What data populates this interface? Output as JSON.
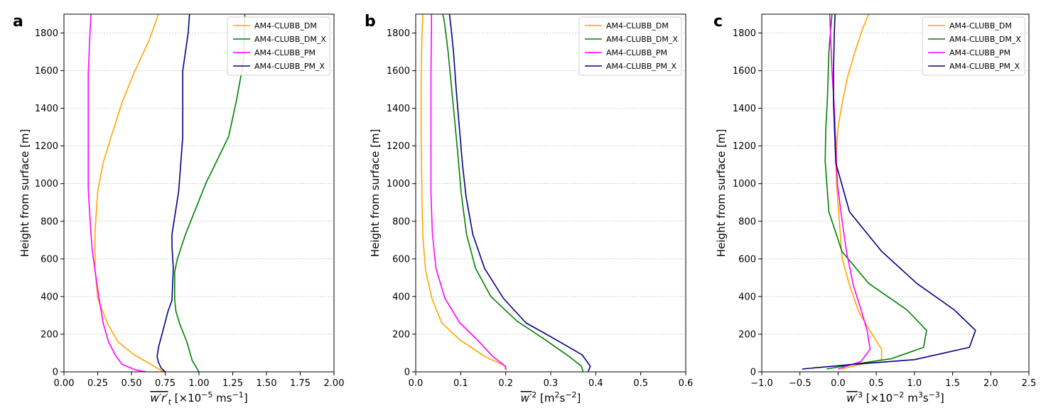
{
  "chart_data": [
    {
      "type": "line",
      "panel": "a",
      "xlabel": "w′r′t [×10⁻⁵ ms⁻¹]",
      "xlabel_parts": {
        "bar": "w′r′",
        "sub": "t",
        "rest": " [×10",
        "exp": "−5",
        "unit": " ms",
        "unit_exp": "−1",
        "close": "]"
      },
      "ylabel": "Height from surface [m]",
      "xlim": [
        0.0,
        2.0
      ],
      "ylim": [
        0,
        1900
      ],
      "xticks": [
        0.0,
        0.25,
        0.5,
        0.75,
        1.0,
        1.25,
        1.5,
        1.75,
        2.0
      ],
      "xtick_labels": [
        "0.00",
        "0.25",
        "0.50",
        "0.75",
        "1.00",
        "1.25",
        "1.50",
        "1.75",
        "2.00"
      ],
      "yticks": [
        0,
        200,
        400,
        600,
        800,
        1000,
        1200,
        1400,
        1600,
        1800
      ],
      "ytick_labels": [
        "0",
        "200",
        "400",
        "600",
        "800",
        "1000",
        "1200",
        "1400",
        "1600",
        "1800"
      ],
      "legend_position": "top-right",
      "series": [
        {
          "name": "AM4-CLUBB_DM",
          "color": "#ffa500",
          "x": [
            0.74,
            0.52,
            0.4,
            0.32,
            0.25,
            0.23,
            0.23,
            0.25,
            0.29,
            0.35,
            0.43,
            0.52,
            0.63,
            0.7
          ],
          "y": [
            0,
            90,
            160,
            260,
            390,
            550,
            740,
            960,
            1110,
            1250,
            1430,
            1590,
            1760,
            1900
          ]
        },
        {
          "name": "AM4-CLUBB_DM_X",
          "color": "#008000",
          "x": [
            1.0,
            0.95,
            0.91,
            0.86,
            0.83,
            0.82,
            0.82,
            0.84,
            0.9,
            1.05,
            1.22,
            1.28,
            1.33,
            1.34
          ],
          "y": [
            0,
            60,
            160,
            250,
            320,
            380,
            530,
            600,
            730,
            1000,
            1250,
            1450,
            1650,
            1900
          ]
        },
        {
          "name": "AM4-CLUBB_PM",
          "color": "#ff00ff",
          "x": [
            0.61,
            0.53,
            0.43,
            0.38,
            0.33,
            0.29,
            0.26,
            0.23,
            0.21,
            0.2,
            0.19,
            0.18,
            0.18,
            0.18,
            0.19,
            0.2
          ],
          "y": [
            0,
            10,
            40,
            90,
            160,
            260,
            390,
            540,
            640,
            740,
            850,
            970,
            1200,
            1580,
            1760,
            1900
          ]
        },
        {
          "name": "AM4-CLUBB_PM_X",
          "color": "#000080",
          "x": [
            0.75,
            0.72,
            0.7,
            0.69,
            0.7,
            0.73,
            0.77,
            0.8,
            0.81,
            0.8,
            0.8,
            0.85,
            0.88,
            0.88,
            0.92,
            0.93
          ],
          "y": [
            0,
            20,
            50,
            80,
            130,
            210,
            320,
            380,
            550,
            670,
            730,
            960,
            1250,
            1600,
            1800,
            1900
          ]
        }
      ]
    },
    {
      "type": "line",
      "panel": "b",
      "xlabel": "w′² [m²s⁻²]",
      "xlabel_parts": {
        "bar": "w′",
        "bar_sup": "2",
        "rest": " [m",
        "exp": "2",
        "unit": "s",
        "unit_exp": "−2",
        "close": "]"
      },
      "ylabel": "Height from surface [m]",
      "xlim": [
        0.0,
        0.6
      ],
      "ylim": [
        0,
        1900
      ],
      "xticks": [
        0.0,
        0.1,
        0.2,
        0.3,
        0.4,
        0.5,
        0.6
      ],
      "xtick_labels": [
        "0.0",
        "0.1",
        "0.2",
        "0.3",
        "0.4",
        "0.5",
        "0.6"
      ],
      "yticks": [
        0,
        200,
        400,
        600,
        800,
        1000,
        1200,
        1400,
        1600,
        1800
      ],
      "ytick_labels": [
        "0",
        "200",
        "400",
        "600",
        "800",
        "1000",
        "1200",
        "1400",
        "1600",
        "1800"
      ],
      "legend_position": "top-right",
      "series": [
        {
          "name": "AM4-CLUBB_DM",
          "color": "#ffa500",
          "x": [
            0.201,
            0.2,
            0.155,
            0.098,
            0.058,
            0.036,
            0.022,
            0.016,
            0.014,
            0.013,
            0.012,
            0.012,
            0.013,
            0.014,
            0.016
          ],
          "y": [
            10,
            30,
            80,
            170,
            260,
            390,
            540,
            720,
            900,
            1100,
            1300,
            1500,
            1700,
            1800,
            1900
          ]
        },
        {
          "name": "AM4-CLUBB_DM_X",
          "color": "#008000",
          "x": [
            0.372,
            0.368,
            0.342,
            0.282,
            0.225,
            0.167,
            0.133,
            0.113,
            0.101,
            0.094,
            0.086,
            0.078,
            0.072,
            0.067,
            0.063,
            0.06
          ],
          "y": [
            0,
            30,
            80,
            180,
            270,
            400,
            550,
            730,
            950,
            1150,
            1350,
            1550,
            1700,
            1800,
            1870,
            1900
          ]
        },
        {
          "name": "AM4-CLUBB_PM",
          "color": "#ff00ff",
          "x": [
            0.2,
            0.199,
            0.172,
            0.137,
            0.098,
            0.065,
            0.045,
            0.037,
            0.034,
            0.034,
            0.034,
            0.034,
            0.035,
            0.035
          ],
          "y": [
            10,
            30,
            80,
            170,
            260,
            390,
            550,
            740,
            950,
            1150,
            1400,
            1600,
            1800,
            1900
          ]
        },
        {
          "name": "AM4-CLUBB_PM_X",
          "color": "#000080",
          "x": [
            0.383,
            0.388,
            0.37,
            0.305,
            0.245,
            0.195,
            0.153,
            0.127,
            0.112,
            0.104,
            0.097,
            0.09,
            0.084,
            0.079,
            0.075
          ],
          "y": [
            0,
            30,
            90,
            180,
            260,
            390,
            550,
            730,
            930,
            1100,
            1300,
            1500,
            1700,
            1820,
            1900
          ]
        }
      ]
    },
    {
      "type": "line",
      "panel": "c",
      "xlabel": "w′³ [×10⁻² m³s⁻³]",
      "xlabel_parts": {
        "bar": "w′",
        "bar_sup": "3",
        "rest": " [×10",
        "exp": "−2",
        "unit": " m",
        "unit_exp": "3",
        "unit2": "s",
        "unit2_exp": "−3",
        "close": "]"
      },
      "ylabel": "Height from surface [m]",
      "xlim": [
        -1.0,
        2.5
      ],
      "ylim": [
        0,
        1900
      ],
      "xticks": [
        -1.0,
        -0.5,
        0.0,
        0.5,
        1.0,
        1.5,
        2.0,
        2.5
      ],
      "xtick_labels": [
        "−1.0",
        "−0.5",
        "0.0",
        "0.5",
        "1.0",
        "1.5",
        "2.0",
        "2.5"
      ],
      "yticks": [
        0,
        200,
        400,
        600,
        800,
        1000,
        1200,
        1400,
        1600,
        1800
      ],
      "ytick_labels": [
        "0",
        "200",
        "400",
        "600",
        "800",
        "1000",
        "1200",
        "1400",
        "1600",
        "1800"
      ],
      "legend_position": "top-right",
      "series": [
        {
          "name": "AM4-CLUBB_DM",
          "color": "#ffa500",
          "x": [
            0.05,
            0.3,
            0.57,
            0.57,
            0.43,
            0.27,
            0.15,
            0.05,
            0.01,
            -0.02,
            -0.03,
            -0.02,
            0.0,
            0.05,
            0.12,
            0.22,
            0.32,
            0.4
          ],
          "y": [
            15,
            40,
            65,
            120,
            210,
            320,
            460,
            610,
            840,
            1000,
            1100,
            1200,
            1300,
            1420,
            1560,
            1700,
            1820,
            1900
          ]
        },
        {
          "name": "AM4-CLUBB_DM_X",
          "color": "#008000",
          "x": [
            -0.15,
            0.2,
            0.7,
            1.12,
            1.16,
            0.9,
            0.4,
            0.05,
            -0.12,
            -0.17,
            -0.16,
            -0.14,
            -0.12,
            -0.08
          ],
          "y": [
            15,
            40,
            70,
            130,
            220,
            330,
            470,
            640,
            850,
            1120,
            1300,
            1450,
            1700,
            1900
          ]
        },
        {
          "name": "AM4-CLUBB_PM",
          "color": "#ff00ff",
          "x": [
            0.0,
            0.3,
            0.42,
            0.38,
            0.3,
            0.2,
            0.11,
            0.04,
            -0.01,
            -0.03,
            -0.05,
            -0.08,
            -0.1,
            -0.11
          ],
          "y": [
            15,
            55,
            120,
            220,
            330,
            460,
            640,
            840,
            1000,
            1200,
            1400,
            1600,
            1800,
            1900
          ]
        },
        {
          "name": "AM4-CLUBB_PM_X",
          "color": "#000080",
          "x": [
            -0.47,
            0.2,
            1.0,
            1.72,
            1.8,
            1.52,
            1.03,
            0.57,
            0.15,
            -0.03,
            -0.06,
            -0.06,
            -0.05,
            -0.04
          ],
          "y": [
            15,
            40,
            65,
            130,
            220,
            330,
            470,
            640,
            850,
            1110,
            1430,
            1600,
            1800,
            1900
          ]
        }
      ]
    }
  ]
}
